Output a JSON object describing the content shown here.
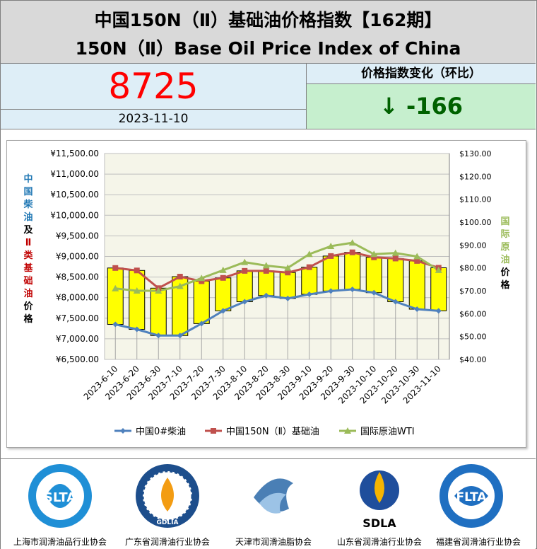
{
  "header": {
    "title_cn": "中国150N（Ⅱ）基础油价格指数【162期】",
    "title_en": "150N（Ⅱ）Base Oil Price Index of China"
  },
  "index_panel": {
    "value": "8725",
    "date": "2023-11-10",
    "change_label": "价格指数变化（环比）",
    "change_value": "↓ -166"
  },
  "axis_labels": {
    "left": [
      "中",
      "国",
      "柴",
      "油",
      "及",
      "Ⅱ",
      "类",
      "基",
      "础",
      "油",
      "价",
      "格"
    ],
    "right": [
      "国",
      "际",
      "原",
      "油",
      "价",
      "格"
    ]
  },
  "chart_data": {
    "type": "line",
    "categories": [
      "2023-6-10",
      "2023-6-20",
      "2023-6-30",
      "2023-7-10",
      "2023-7-20",
      "2023-7-30",
      "2023-8-10",
      "2023-8-20",
      "2023-8-30",
      "2023-9-10",
      "2023-9-20",
      "2023-9-30",
      "2023-10-10",
      "2023-10-20",
      "2023-10-30",
      "2023-11-10"
    ],
    "left_axis": {
      "min": 6500,
      "max": 11500,
      "step": 500,
      "ticks": [
        "¥11,500.00",
        "¥11,000.00",
        "¥10,500.00",
        "¥10,000.00",
        "¥9,500.00",
        "¥9,000.00",
        "¥8,500.00",
        "¥8,000.00",
        "¥7,500.00",
        "¥7,000.00",
        "¥6,500.00"
      ]
    },
    "right_axis": {
      "min": 40,
      "max": 130,
      "step": 10,
      "ticks": [
        "$130.00",
        "$120.00",
        "$110.00",
        "$100.00",
        "$90.00",
        "$80.00",
        "$70.00",
        "$60.00",
        "$50.00",
        "$40.00"
      ]
    },
    "series": [
      {
        "name": "中国0#柴油",
        "axis": "left",
        "color": "#4f81bd",
        "marker": "diamond",
        "values": [
          7350,
          7230,
          7080,
          7080,
          7370,
          7680,
          7900,
          8050,
          7980,
          8080,
          8160,
          8200,
          8120,
          7900,
          7720,
          7680
        ]
      },
      {
        "name": "中国150N（Ⅱ）基础油",
        "axis": "left",
        "color": "#c0504d",
        "marker": "square",
        "values": [
          8720,
          8660,
          8230,
          8510,
          8400,
          8480,
          8650,
          8650,
          8610,
          8740,
          9010,
          9100,
          8980,
          8950,
          8891,
          8725
        ]
      },
      {
        "name": "国际原油WTI",
        "axis": "right",
        "color": "#9bbb59",
        "marker": "triangle",
        "values": [
          71,
          70,
          70,
          72,
          75.5,
          79,
          82.5,
          81,
          80,
          86,
          89.5,
          91,
          86,
          86.5,
          85,
          79
        ]
      }
    ],
    "grid": true,
    "legend": "bottom",
    "updown_bars": true
  },
  "footer": {
    "orgs": [
      "上海市润滑油品行业协会",
      "广东省润滑油行业协会",
      "天津市润滑油脂协会",
      "山东省润滑油行业协会",
      "福建省润滑油行业协会"
    ],
    "logos": [
      "SLTA",
      "GDLIA",
      "",
      "SDLA",
      "FLTA"
    ]
  }
}
